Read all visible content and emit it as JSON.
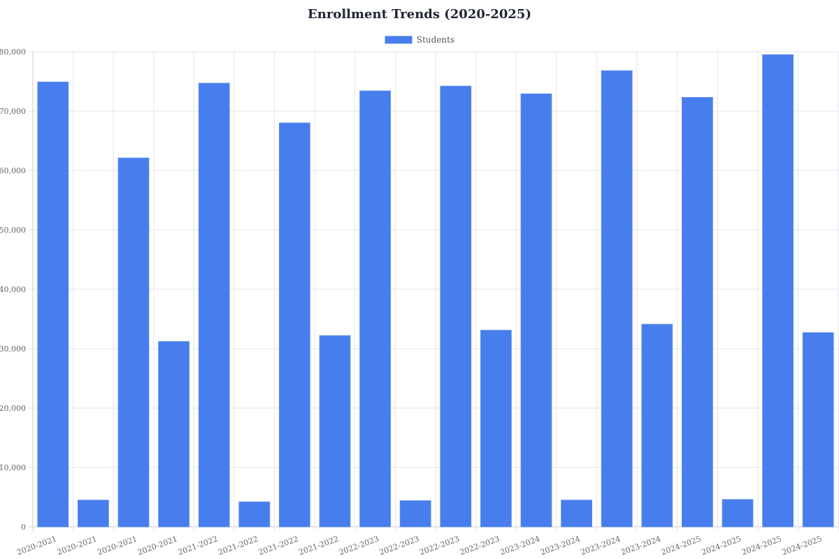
{
  "chart_data": {
    "type": "bar",
    "title": "Enrollment Trends (2020-2025)",
    "xlabel": "",
    "ylabel": "",
    "ylim": [
      0,
      80000
    ],
    "yticks": [
      "0",
      "10,000",
      "20,000",
      "30,000",
      "40,000",
      "50,000",
      "60,000",
      "70,000",
      "80,000"
    ],
    "grid": true,
    "legend_position": "top",
    "categories": [
      "2020-2021",
      "2020-2021",
      "2020-2021",
      "2020-2021",
      "2021-2022",
      "2021-2022",
      "2021-2022",
      "2021-2022",
      "2022-2023",
      "2022-2023",
      "2022-2023",
      "2022-2023",
      "2023-2024",
      "2023-2024",
      "2023-2024",
      "2023-2024",
      "2024-2025",
      "2024-2025",
      "2024-2025",
      "2024-2025"
    ],
    "series": [
      {
        "name": "Students",
        "color": "#477ded",
        "values": [
          74900,
          4500,
          62100,
          31200,
          74700,
          4200,
          68000,
          32200,
          73400,
          4400,
          74200,
          33100,
          72900,
          4500,
          76800,
          34100,
          72300,
          4600,
          79500,
          32700
        ]
      }
    ]
  }
}
